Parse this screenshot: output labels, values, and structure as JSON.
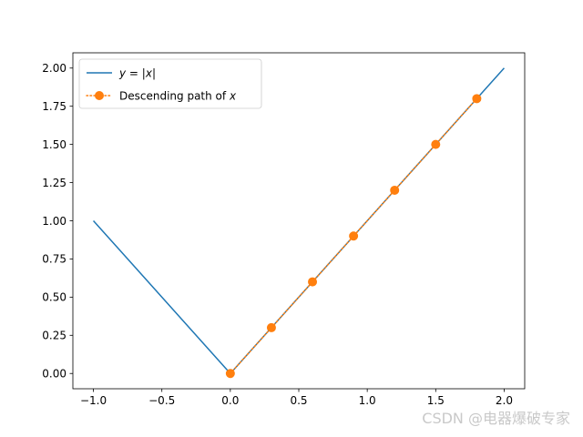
{
  "chart_data": {
    "type": "line",
    "title": "",
    "xlabel": "",
    "ylabel": "",
    "xlim": [
      -1.15,
      2.15
    ],
    "ylim": [
      -0.1,
      2.1
    ],
    "grid": false,
    "legend_position": "top-left",
    "x_ticks": [
      -1.0,
      -0.5,
      0.0,
      0.5,
      1.0,
      1.5,
      2.0
    ],
    "x_tick_labels": [
      "−1.0",
      "−0.5",
      "0.0",
      "0.5",
      "1.0",
      "1.5",
      "2.0"
    ],
    "y_ticks": [
      0.0,
      0.25,
      0.5,
      0.75,
      1.0,
      1.25,
      1.5,
      1.75,
      2.0
    ],
    "y_tick_labels": [
      "0.00",
      "0.25",
      "0.50",
      "0.75",
      "1.00",
      "1.25",
      "1.50",
      "1.75",
      "2.00"
    ],
    "series": [
      {
        "legend_parts": [
          "y",
          " = |",
          "x",
          "|"
        ],
        "color": "#1f77b4",
        "line_style": "solid",
        "marker": "none",
        "x": [
          -1.0,
          0.0,
          2.0
        ],
        "y": [
          1.0,
          0.0,
          2.0
        ]
      },
      {
        "legend_parts": [
          "Descending path of ",
          "x"
        ],
        "color": "#ff7f0e",
        "line_style": "dotted",
        "marker": "circle",
        "x": [
          1.8,
          1.5,
          1.2,
          0.9,
          0.6,
          0.3,
          0.0
        ],
        "y": [
          1.8,
          1.5,
          1.2,
          0.9,
          0.6,
          0.3,
          0.0
        ]
      }
    ]
  },
  "watermark": "CSDN @电器爆破专家"
}
